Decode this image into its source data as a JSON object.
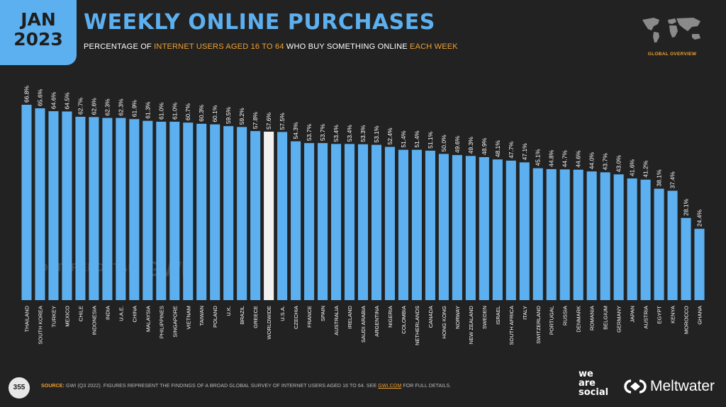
{
  "header": {
    "month": "JAN",
    "year": "2023",
    "title": "WEEKLY ONLINE PURCHASES",
    "subtitle_parts": [
      "PERCENTAGE OF ",
      "INTERNET USERS AGED 16 TO 64",
      " WHO BUY SOMETHING ONLINE ",
      "EACH WEEK"
    ]
  },
  "overview_badge": "GLOBAL OVERVIEW",
  "watermarks": {
    "datareportal": "DATAREPORTAL",
    "gwi": "GWI."
  },
  "footer": {
    "page_number": "355",
    "source_label": "SOURCE:",
    "source_text": " GWI (Q3 2022). FIGURES REPRESENT THE FINDINGS OF A BROAD GLOBAL SURVEY OF INTERNET USERS AGED 16 TO 64. SEE ",
    "source_link": "GWI.COM",
    "source_tail": " FOR FULL DETAILS.",
    "brand_line1": "we",
    "brand_line2": "are",
    "brand_line3": "social",
    "partner": "Meltwater"
  },
  "colors": {
    "bar": "#5db0ef",
    "highlight_bar": "#f2f2f2",
    "background": "#222222",
    "accent": "#f0a030"
  },
  "chart_data": {
    "type": "bar",
    "categories": [
      "THAILAND",
      "SOUTH KOREA",
      "TURKEY",
      "MEXICO",
      "CHILE",
      "INDONESIA",
      "INDIA",
      "U.A.E.",
      "CHINA",
      "MALAYSIA",
      "PHILIPPINES",
      "SINGAPORE",
      "VIETNAM",
      "TAIWAN",
      "POLAND",
      "U.K.",
      "BRAZIL",
      "GREECE",
      "WORLDWIDE",
      "U.S.A.",
      "CZECHIA",
      "FRANCE",
      "SPAIN",
      "AUSTRALIA",
      "IRELAND",
      "SAUDI ARABIA",
      "ARGENTINA",
      "NIGERIA",
      "COLOMBIA",
      "NETHERLANDS",
      "CANADA",
      "HONG KONG",
      "NORWAY",
      "NEW ZEALAND",
      "SWEDEN",
      "ISRAEL",
      "SOUTH AFRICA",
      "ITALY",
      "SWITZERLAND",
      "PORTUGAL",
      "RUSSIA",
      "DENMARK",
      "ROMANIA",
      "BELGIUM",
      "GERMANY",
      "JAPAN",
      "AUSTRIA",
      "EGYPT",
      "KENYA",
      "MOROCCO",
      "GHANA"
    ],
    "values": [
      66.8,
      65.6,
      64.6,
      64.5,
      62.7,
      62.6,
      62.3,
      62.3,
      61.9,
      61.3,
      61.0,
      61.0,
      60.7,
      60.3,
      60.1,
      59.5,
      59.2,
      57.8,
      57.6,
      57.5,
      54.3,
      53.7,
      53.7,
      53.4,
      53.4,
      53.3,
      53.1,
      52.4,
      51.4,
      51.4,
      51.1,
      50.0,
      49.6,
      49.3,
      48.9,
      48.1,
      47.7,
      47.1,
      45.1,
      44.8,
      44.7,
      44.6,
      44.0,
      43.7,
      43.0,
      41.6,
      41.2,
      38.1,
      37.4,
      28.1,
      24.4
    ],
    "value_labels": [
      "66.8%",
      "65.6%",
      "64.6%",
      "64.5%",
      "62.7%",
      "62.6%",
      "62.3%",
      "62.3%",
      "61.9%",
      "61.3%",
      "61.0%",
      "61.0%",
      "60.7%",
      "60.3%",
      "60.1%",
      "59.5%",
      "59.2%",
      "57.8%",
      "57.6%",
      "57.5%",
      "54.3%",
      "53.7%",
      "53.7%",
      "53.4%",
      "53.4%",
      "53.3%",
      "53.1%",
      "52.4%",
      "51.4%",
      "51.4%",
      "51.1%",
      "50.0%",
      "49.6%",
      "49.3%",
      "48.9%",
      "48.1%",
      "47.7%",
      "47.1%",
      "45.1%",
      "44.8%",
      "44.7%",
      "44.6%",
      "44.0%",
      "43.7%",
      "43.0%",
      "41.6%",
      "41.2%",
      "38.1%",
      "37.4%",
      "28.1%",
      "24.4%"
    ],
    "highlight": "WORLDWIDE",
    "ylim": [
      0,
      66.8
    ],
    "grid": false,
    "legend": "none"
  }
}
